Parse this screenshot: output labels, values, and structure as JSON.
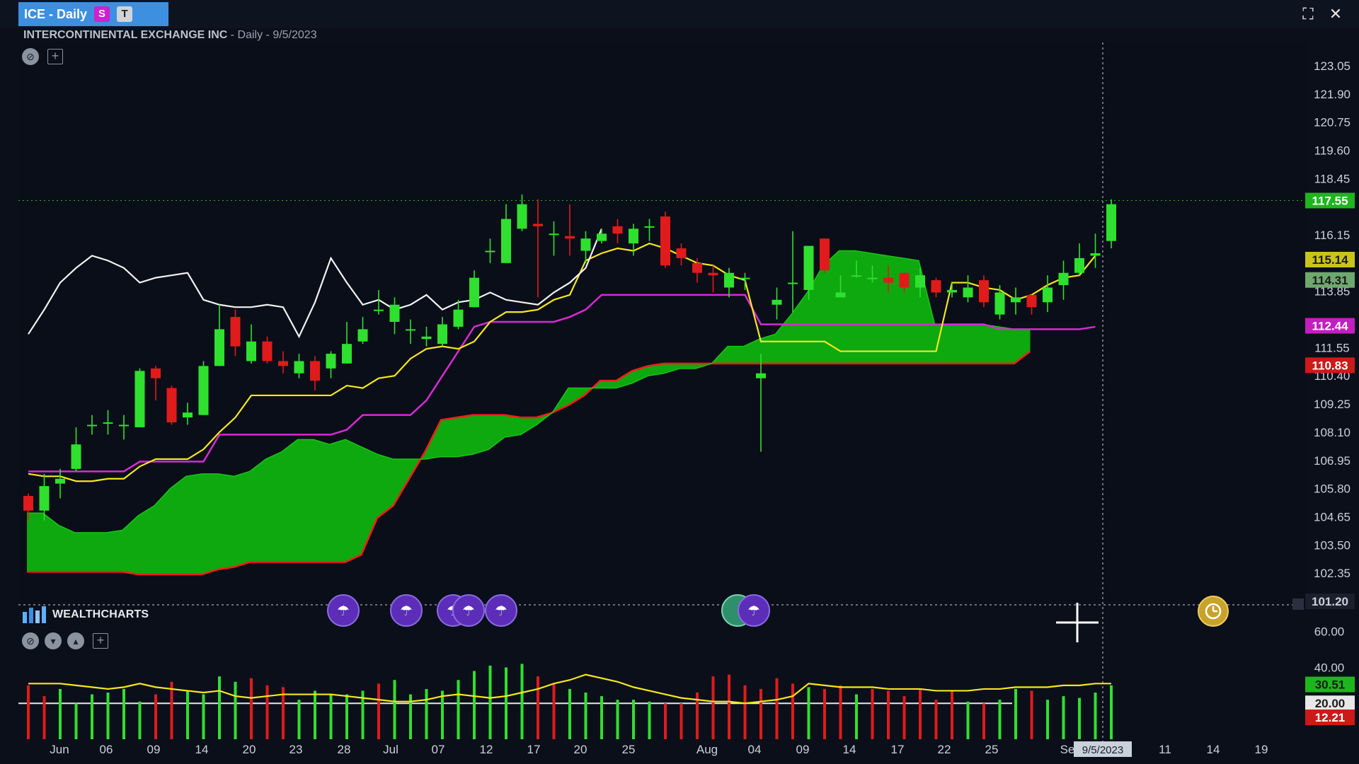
{
  "window": {
    "tab_title": "ICE - Daily",
    "badge_s": "S",
    "badge_t": "T",
    "company": "INTERCONTINENTAL EXCHANGE INC",
    "period": " - Daily - 9/5/2023"
  },
  "brand": {
    "label": "WEALTHCHARTS"
  },
  "colors": {
    "background": "#0b0f1a",
    "up": "#2fe02f",
    "down": "#e01b1b",
    "cloud": "#0fb10f",
    "cloud_edge": "#ff1a1a",
    "conversion": "#f5e81c",
    "base": "#d62bd6",
    "lagging": "#f2f2f2",
    "volume_line": "#f5e81c"
  },
  "icons": [
    "draw-tool-icon",
    "add-indicator-icon",
    "collapse-icon",
    "move-down-icon",
    "move-up-icon",
    "fullscreen-icon",
    "close-icon",
    "crosshair-icon",
    "clock-icon",
    "event-icon"
  ],
  "chart_data": [
    {
      "type": "candlestick",
      "title": "INTERCONTINENTAL EXCHANGE INC",
      "price_axis_ticks": [
        "123.05",
        "121.90",
        "120.75",
        "119.60",
        "118.45",
        "116.15",
        "113.85",
        "111.55",
        "110.40",
        "109.25",
        "108.10",
        "106.95",
        "105.80",
        "104.65",
        "103.50",
        "102.35"
      ],
      "x_tick_labels": [
        "Jun",
        "06",
        "09",
        "14",
        "20",
        "23",
        "28",
        "Jul",
        "07",
        "12",
        "17",
        "20",
        "25",
        "Aug",
        "04",
        "09",
        "14",
        "17",
        "22",
        "25",
        "Se",
        "11",
        "14",
        "19"
      ],
      "ylim": [
        101.2,
        124.0
      ],
      "price_tags": [
        {
          "value": "117.55",
          "bg": "#1eb51e",
          "fg": "#ffffff"
        },
        {
          "value": "115.14",
          "bg": "#c9c41a",
          "fg": "#1a1a1a"
        },
        {
          "value": "114.31",
          "bg": "#6fa86f",
          "fg": "#1a1a1a"
        },
        {
          "value": "112.44",
          "bg": "#c21fc2",
          "fg": "#ffffff"
        },
        {
          "value": "110.83",
          "bg": "#cc1a1a",
          "fg": "#ffffff"
        },
        {
          "value": "101.20",
          "bg": "#1a1f2b",
          "fg": "#c9d1dc"
        }
      ],
      "crosshair_date": "9/5/2023",
      "candles": [
        [
          105.5,
          104.9,
          105.6,
          104.5
        ],
        [
          104.9,
          105.9,
          106.4,
          104.5
        ],
        [
          106.0,
          106.2,
          106.6,
          105.4
        ],
        [
          106.6,
          107.6,
          108.3,
          106.5
        ],
        [
          108.4,
          108.4,
          108.8,
          108.0
        ],
        [
          108.5,
          108.5,
          109.0,
          108.0
        ],
        [
          108.4,
          108.4,
          108.8,
          107.8
        ],
        [
          108.3,
          110.6,
          110.7,
          108.3
        ],
        [
          110.7,
          110.3,
          110.8,
          109.4
        ],
        [
          109.9,
          108.5,
          110.0,
          108.4
        ],
        [
          108.7,
          108.9,
          109.3,
          108.4
        ],
        [
          108.8,
          110.8,
          111.0,
          108.8
        ],
        [
          110.8,
          112.3,
          113.3,
          110.8
        ],
        [
          112.8,
          111.6,
          113.1,
          111.2
        ],
        [
          111.0,
          111.8,
          112.5,
          110.9
        ],
        [
          111.8,
          111.0,
          112.0,
          110.9
        ],
        [
          111.0,
          110.8,
          111.4,
          110.5
        ],
        [
          110.5,
          111.0,
          111.3,
          110.3
        ],
        [
          111.0,
          110.2,
          111.2,
          109.8
        ],
        [
          110.7,
          111.3,
          111.4,
          110.3
        ],
        [
          110.9,
          111.7,
          112.6,
          110.9
        ],
        [
          111.8,
          112.3,
          112.8,
          111.7
        ],
        [
          113.1,
          113.1,
          113.9,
          112.9
        ],
        [
          112.6,
          113.3,
          113.6,
          112.1
        ],
        [
          112.3,
          112.3,
          112.7,
          111.7
        ],
        [
          111.9,
          112.0,
          112.4,
          111.6
        ],
        [
          111.7,
          112.5,
          112.8,
          111.6
        ],
        [
          112.4,
          113.1,
          113.5,
          112.3
        ],
        [
          113.2,
          114.4,
          114.7,
          113.2
        ],
        [
          115.5,
          115.5,
          116.0,
          115.0
        ],
        [
          115.0,
          116.8,
          117.4,
          115.0
        ],
        [
          116.4,
          117.4,
          117.8,
          116.3
        ],
        [
          116.6,
          116.5,
          117.6,
          113.6
        ],
        [
          116.2,
          116.2,
          116.7,
          115.3
        ],
        [
          116.1,
          116.0,
          117.4,
          115.3
        ],
        [
          115.5,
          116.0,
          116.3,
          115.0
        ],
        [
          115.9,
          116.2,
          116.4,
          115.8
        ],
        [
          116.5,
          116.2,
          116.8,
          115.8
        ],
        [
          115.8,
          116.4,
          116.6,
          115.3
        ],
        [
          116.5,
          116.5,
          116.8,
          115.9
        ],
        [
          116.9,
          114.9,
          117.1,
          114.8
        ],
        [
          115.6,
          115.2,
          115.8,
          114.9
        ],
        [
          115.0,
          114.6,
          115.2,
          114.2
        ],
        [
          114.6,
          114.5,
          114.9,
          113.8
        ],
        [
          114.0,
          114.6,
          114.8,
          113.6
        ],
        [
          114.4,
          114.4,
          114.6,
          113.9
        ],
        [
          110.3,
          110.5,
          111.3,
          107.3
        ],
        [
          113.3,
          113.5,
          114.0,
          112.7
        ],
        [
          114.2,
          114.2,
          116.3,
          113.0
        ],
        [
          113.9,
          115.7,
          115.7,
          113.5
        ],
        [
          116.0,
          114.7,
          116.0,
          114.6
        ],
        [
          113.6,
          113.8,
          114.5,
          113.6
        ],
        [
          114.5,
          114.5,
          115.1,
          114.4
        ],
        [
          114.4,
          114.4,
          114.9,
          114.2
        ],
        [
          114.4,
          114.2,
          114.9,
          113.8
        ],
        [
          114.6,
          114.0,
          114.6,
          113.8
        ],
        [
          114.0,
          114.5,
          114.8,
          113.6
        ],
        [
          114.3,
          113.8,
          114.4,
          113.6
        ],
        [
          113.8,
          113.9,
          114.2,
          113.6
        ],
        [
          113.6,
          114.0,
          114.5,
          113.4
        ],
        [
          114.3,
          113.4,
          114.5,
          113.2
        ],
        [
          112.9,
          113.8,
          114.1,
          112.7
        ],
        [
          113.4,
          113.6,
          114.0,
          112.9
        ],
        [
          113.7,
          113.2,
          113.7,
          112.9
        ],
        [
          113.4,
          114.0,
          114.5,
          113.0
        ],
        [
          114.1,
          114.6,
          115.1,
          113.5
        ],
        [
          114.6,
          115.2,
          115.8,
          114.5
        ],
        [
          115.3,
          115.4,
          116.2,
          114.8
        ],
        [
          115.9,
          117.4,
          117.6,
          115.6
        ]
      ],
      "ichimoku_cloud": {
        "span_a": [
          104.8,
          104.8,
          104.3,
          104.0,
          104.0,
          104.0,
          104.1,
          104.7,
          105.1,
          105.8,
          106.3,
          106.4,
          106.4,
          106.3,
          106.5,
          107.0,
          107.3,
          107.8,
          107.8,
          107.6,
          107.8,
          107.5,
          107.2,
          107.0,
          107.0,
          107.0,
          107.1,
          107.1,
          107.2,
          107.4,
          107.9,
          108.0,
          108.4,
          108.9,
          109.9,
          109.9,
          109.9,
          109.9,
          110.1,
          110.4,
          110.5,
          110.7,
          110.7,
          110.9,
          111.6,
          111.6,
          111.9,
          112.1,
          112.9,
          113.8,
          114.9,
          115.5,
          115.5,
          115.4,
          115.3,
          115.2,
          115.1,
          112.5,
          112.5,
          112.5,
          112.5,
          112.4,
          112.3,
          112.3
        ],
        "span_b": [
          102.4,
          102.4,
          102.4,
          102.4,
          102.4,
          102.4,
          102.4,
          102.3,
          102.3,
          102.3,
          102.3,
          102.3,
          102.5,
          102.6,
          102.8,
          102.8,
          102.8,
          102.8,
          102.8,
          102.8,
          102.8,
          103.1,
          104.6,
          105.1,
          106.2,
          107.3,
          108.6,
          108.7,
          108.8,
          108.8,
          108.8,
          108.7,
          108.7,
          108.9,
          109.2,
          109.6,
          110.2,
          110.2,
          110.6,
          110.8,
          110.9,
          110.9,
          110.9,
          110.9,
          110.9,
          110.9,
          110.9,
          110.9,
          110.9,
          110.9,
          110.9,
          110.9,
          110.9,
          110.9,
          110.9,
          110.9,
          110.9,
          110.9,
          110.9,
          110.9,
          110.9,
          110.9,
          110.9,
          111.4
        ]
      },
      "conversion_line": [
        106.4,
        106.3,
        106.3,
        106.1,
        106.1,
        106.2,
        106.2,
        106.7,
        107.0,
        107.0,
        107.0,
        107.4,
        108.1,
        108.7,
        109.6,
        109.6,
        109.6,
        109.6,
        109.6,
        109.6,
        110.0,
        109.9,
        110.3,
        110.4,
        111.1,
        111.5,
        111.6,
        111.5,
        111.8,
        112.6,
        113.0,
        113.0,
        113.1,
        113.5,
        113.7,
        115.1,
        115.4,
        115.6,
        115.5,
        115.8,
        115.6,
        115.3,
        115.0,
        114.9,
        114.5,
        114.3,
        111.8,
        111.8,
        111.8,
        111.8,
        111.8,
        111.4,
        111.4,
        111.4,
        111.4,
        111.4,
        111.4,
        111.4,
        114.2,
        114.2,
        114.0,
        113.9,
        113.5,
        113.7,
        114.1,
        114.4,
        114.5,
        115.3
      ],
      "base_line": [
        106.5,
        106.5,
        106.5,
        106.5,
        106.5,
        106.5,
        106.5,
        106.9,
        106.9,
        106.9,
        106.9,
        106.9,
        108.0,
        108.0,
        108.0,
        108.0,
        108.0,
        108.0,
        108.0,
        108.0,
        108.2,
        108.8,
        108.8,
        108.8,
        108.8,
        109.4,
        110.4,
        111.4,
        112.4,
        112.6,
        112.6,
        112.6,
        112.6,
        112.6,
        112.8,
        113.1,
        113.7,
        113.7,
        113.7,
        113.7,
        113.7,
        113.7,
        113.7,
        113.7,
        113.7,
        113.7,
        112.5,
        112.5,
        112.5,
        112.5,
        112.5,
        112.5,
        112.5,
        112.5,
        112.5,
        112.5,
        112.5,
        112.5,
        112.5,
        112.5,
        112.5,
        112.3,
        112.3,
        112.3,
        112.3,
        112.3,
        112.3,
        112.4
      ],
      "lagging_line": [
        112.1,
        113.1,
        114.2,
        114.8,
        115.3,
        115.1,
        114.8,
        114.2,
        114.4,
        114.5,
        114.6,
        113.5,
        113.3,
        113.2,
        113.2,
        113.3,
        113.2,
        112.0,
        113.4,
        115.2,
        114.2,
        113.3,
        113.5,
        113.1,
        113.3,
        113.7,
        113.1,
        113.4,
        113.5,
        113.8,
        113.5,
        113.4,
        113.3,
        113.8,
        114.2,
        114.8,
        116.4
      ]
    },
    {
      "type": "bar",
      "title": "Volume",
      "axis_ticks": [
        "60.00",
        "40.00",
        "20.00"
      ],
      "tags": [
        {
          "value": "30.51",
          "bg": "#1eb51e",
          "fg": "#1a1a1a"
        },
        {
          "value": "20.00",
          "bg": "#e8e8e8",
          "fg": "#1a1a1a"
        },
        {
          "value": "12.21",
          "bg": "#cc1a1a",
          "fg": "#ffffff"
        }
      ],
      "ylim": [
        0,
        65
      ],
      "bar_colors_down_index": [
        0,
        1,
        8,
        9,
        14,
        15,
        16,
        22,
        32,
        33,
        40,
        41,
        42,
        43,
        44,
        45,
        46,
        47,
        48,
        50,
        51,
        53,
        54,
        55,
        56,
        57,
        58,
        60,
        63
      ],
      "values": [
        30,
        24,
        28,
        20,
        25,
        26,
        28,
        21,
        25,
        32,
        27,
        25,
        35,
        32,
        34,
        30,
        29,
        22,
        27,
        25,
        25,
        27,
        31,
        33,
        25,
        28,
        27,
        33,
        38,
        41,
        40,
        42,
        35,
        31,
        28,
        26,
        24,
        22,
        22,
        21,
        20,
        20,
        26,
        35,
        36,
        30,
        28,
        34,
        31,
        29,
        28,
        30,
        25,
        28,
        27,
        24,
        28,
        22,
        27,
        21,
        20,
        22,
        28,
        27,
        22,
        24,
        23,
        26,
        30
      ],
      "line_values": [
        31,
        31,
        31,
        30,
        29,
        28,
        29,
        31,
        29,
        28,
        27,
        26,
        27,
        24,
        23,
        24,
        25,
        25,
        25,
        25,
        24,
        23,
        22,
        21,
        21,
        22,
        24,
        25,
        24,
        23,
        24,
        26,
        28,
        31,
        33,
        36,
        34,
        32,
        29,
        27,
        25,
        23,
        22,
        21,
        21,
        20,
        21,
        22,
        24,
        31,
        30,
        29,
        29,
        29,
        28,
        28,
        28,
        27,
        27,
        27,
        28,
        28,
        29,
        29,
        29,
        30,
        30,
        31,
        31
      ]
    }
  ],
  "x_axis_dates": {
    "major": [
      "Jun",
      "Jul",
      "Aug",
      "Se"
    ]
  }
}
